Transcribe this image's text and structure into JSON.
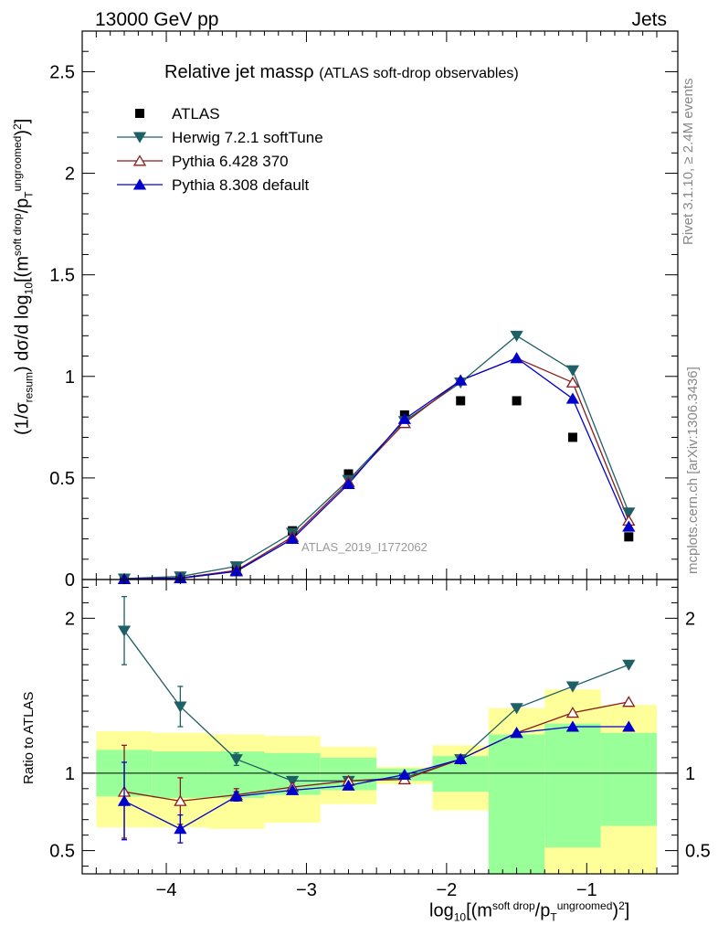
{
  "header": {
    "left": "13000 GeV pp",
    "right": "Jets"
  },
  "side_labels": {
    "rivet": "Rivet 3.1.10, ≥ 2.4M events",
    "mcplots": "mcplots.cern.ch [arXiv:1306.3436]"
  },
  "chart_data": {
    "type": "scatter",
    "title_main": "Relative jet mass",
    "title_symbol": "ρ",
    "title_sub": "(ATLAS soft-drop observables)",
    "analysis_id": "ATLAS_2019_I1772062",
    "x": [
      -4.3,
      -3.9,
      -3.5,
      -3.1,
      -2.7,
      -2.3,
      -1.9,
      -1.5,
      -1.1,
      -0.7
    ],
    "x_edges": [
      -4.5,
      -4.1,
      -3.7,
      -3.3,
      -2.9,
      -2.5,
      -2.1,
      -1.7,
      -1.3,
      -0.9,
      -0.5
    ],
    "xlim": [
      -4.6,
      -0.35
    ],
    "xticks": [
      -4,
      -3,
      -2,
      -1
    ],
    "xtick_labels": [
      "−4",
      "−3",
      "−2",
      "−1"
    ],
    "main": {
      "ylim": [
        0,
        2.7
      ],
      "yticks": [
        0,
        0.5,
        1,
        1.5,
        2,
        2.5
      ],
      "ytick_labels": [
        "0",
        "0.5",
        "1",
        "1.5",
        "2",
        "2.5"
      ]
    },
    "ratio": {
      "ylim": [
        0.35,
        2.25
      ],
      "yticks": [
        0.5,
        1,
        2
      ],
      "ytick_labels": [
        "0.5",
        "1",
        "2"
      ],
      "ylabel": "Ratio to ATLAS",
      "band_yellow": [
        [
          0.65,
          1.27
        ],
        [
          0.65,
          1.26
        ],
        [
          0.64,
          1.25
        ],
        [
          0.68,
          1.24
        ],
        [
          0.8,
          1.17
        ],
        [
          0.93,
          1.04
        ],
        [
          0.76,
          1.18
        ],
        [
          0.3,
          1.42
        ],
        [
          0.3,
          1.54
        ],
        [
          0.3,
          1.44
        ]
      ],
      "band_green": [
        [
          0.85,
          1.15
        ],
        [
          0.84,
          1.14
        ],
        [
          0.84,
          1.14
        ],
        [
          0.86,
          1.13
        ],
        [
          0.89,
          1.1
        ],
        [
          0.95,
          1.03
        ],
        [
          0.88,
          1.11
        ],
        [
          0.3,
          1.25
        ],
        [
          0.52,
          1.32
        ],
        [
          0.66,
          1.26
        ]
      ]
    },
    "series": [
      {
        "name": "ATLAS",
        "color": "#000000",
        "marker": "square",
        "values": [
          0.005,
          0.01,
          0.06,
          0.24,
          0.52,
          0.81,
          0.88,
          0.88,
          0.7,
          0.21
        ]
      },
      {
        "name": "Herwig 7.2.1 softTune",
        "color": "#1f5f66",
        "marker": "triangle-down",
        "values": [
          0.005,
          0.015,
          0.065,
          0.23,
          0.49,
          0.78,
          0.97,
          1.2,
          1.03,
          0.33
        ],
        "ratio": [
          1.92,
          1.43,
          1.09,
          0.95,
          0.95,
          0.97,
          1.09,
          1.42,
          1.56,
          1.7
        ],
        "ratio_err": [
          0.22,
          0.13,
          0.04,
          0.01,
          0.01,
          0.01,
          0.01,
          0.01,
          0.01,
          0.01
        ]
      },
      {
        "name": "Pythia 6.428 370",
        "color": "#8b1a1a",
        "marker": "triangle-up-open",
        "values": [
          0.003,
          0.008,
          0.045,
          0.21,
          0.48,
          0.77,
          0.98,
          1.09,
          0.97,
          0.29
        ],
        "ratio": [
          0.88,
          0.82,
          0.86,
          0.91,
          0.95,
          0.96,
          1.09,
          1.26,
          1.39,
          1.46
        ],
        "ratio_err": [
          0.3,
          0.15,
          0.04,
          0.01,
          0.01,
          0.01,
          0.01,
          0.01,
          0.01,
          0.01
        ]
      },
      {
        "name": "Pythia 8.308 default",
        "color": "#0000cc",
        "marker": "triangle-up",
        "values": [
          0.002,
          0.006,
          0.04,
          0.2,
          0.47,
          0.79,
          0.98,
          1.09,
          0.89,
          0.26
        ],
        "ratio": [
          0.82,
          0.64,
          0.85,
          0.89,
          0.92,
          0.99,
          1.09,
          1.26,
          1.3,
          1.3
        ],
        "ratio_err": [
          0.25,
          0.09,
          0.03,
          0.01,
          0.01,
          0.01,
          0.01,
          0.01,
          0.01,
          0.01
        ]
      }
    ]
  }
}
